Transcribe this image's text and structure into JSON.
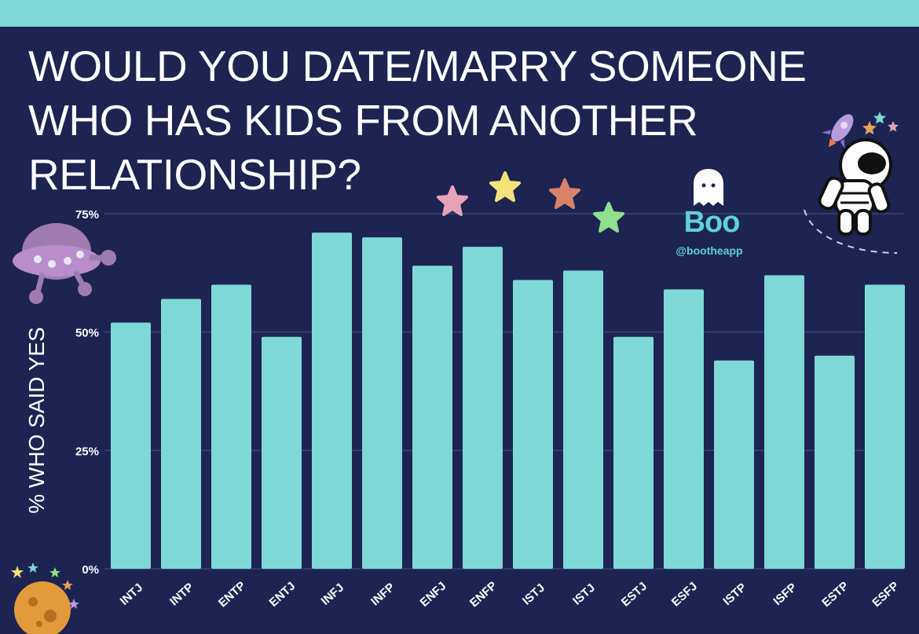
{
  "header": {
    "title": "WOULD YOU DATE/MARRY SOMEONE WHO HAS KIDS FROM ANOTHER RELATIONSHIP?"
  },
  "brand": {
    "name": "Boo",
    "handle": "@bootheapp"
  },
  "colors": {
    "background": "#1d2452",
    "bar": "#7fd8d8",
    "accent": "#5fd0de"
  },
  "icons": [
    "ufo-icon",
    "star-icon",
    "ghost-icon",
    "rocket-icon",
    "astronaut-icon",
    "planet-icon"
  ],
  "chart_data": {
    "type": "bar",
    "ylabel": "% WHO SAID YES",
    "xlabel": "",
    "ylim": [
      0,
      75
    ],
    "yticks": [
      0,
      25,
      50,
      75
    ],
    "ytick_labels": [
      "0%",
      "25%",
      "50%",
      "75%"
    ],
    "grid": true,
    "categories": [
      "INTJ",
      "INTP",
      "ENTP",
      "ENTJ",
      "INFJ",
      "INFP",
      "ENFJ",
      "ENFP",
      "ISTJ",
      "ISTJ",
      "ESTJ",
      "ESFJ",
      "ISTP",
      "ISFP",
      "ESTP",
      "ESFP"
    ],
    "values": [
      52,
      57,
      60,
      49,
      71,
      70,
      64,
      68,
      61,
      63,
      49,
      59,
      44,
      62,
      45,
      60
    ]
  }
}
